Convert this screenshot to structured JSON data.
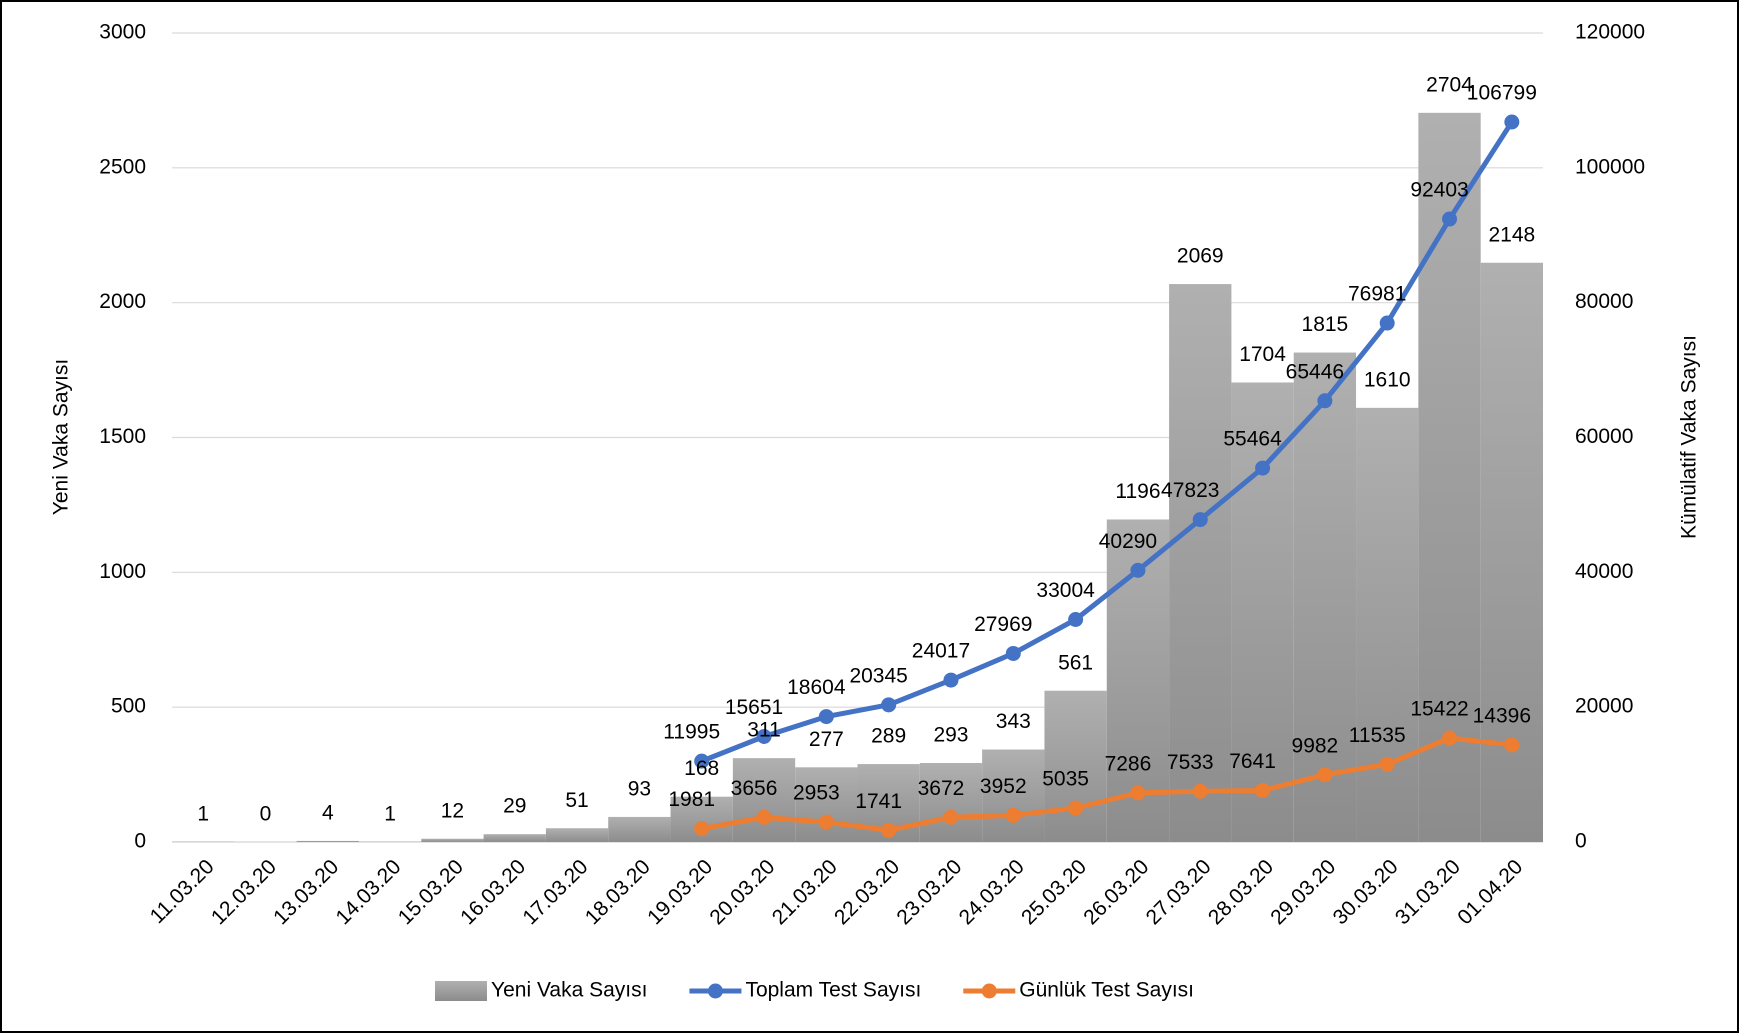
{
  "chart_data": {
    "type": "bar",
    "categories": [
      "11.03.20",
      "12.03.20",
      "13.03.20",
      "14.03.20",
      "15.03.20",
      "16.03.20",
      "17.03.20",
      "18.03.20",
      "19.03.20",
      "20.03.20",
      "21.03.20",
      "22.03.20",
      "23.03.20",
      "24.03.20",
      "25.03.20",
      "26.03.20",
      "27.03.20",
      "28.03.20",
      "29.03.20",
      "30.03.20",
      "31.03.20",
      "01.04.20"
    ],
    "series": [
      {
        "name": "Yeni Vaka Sayısı",
        "type": "bar",
        "color": "#a6a6a6",
        "label_color": "#ff0000",
        "values": [
          1,
          0,
          4,
          1,
          12,
          29,
          51,
          93,
          168,
          311,
          277,
          289,
          293,
          343,
          561,
          1196,
          2069,
          1704,
          1815,
          1610,
          2704,
          2148
        ]
      },
      {
        "name": "Toplam Test Sayısı",
        "type": "line",
        "axis": "y2",
        "color": "#4472c4",
        "label_color": "#000000",
        "values": [
          null,
          null,
          null,
          null,
          null,
          null,
          null,
          null,
          11995,
          15651,
          18604,
          20345,
          24017,
          27969,
          33004,
          40290,
          47823,
          55464,
          65446,
          76981,
          92403,
          106799
        ]
      },
      {
        "name": "Günlük Test Sayısı",
        "type": "line",
        "axis": "y2",
        "color": "#ed7d31",
        "label_color": "#000000",
        "values": [
          null,
          null,
          null,
          null,
          null,
          null,
          null,
          null,
          1981,
          3656,
          2953,
          1741,
          3672,
          3952,
          5035,
          7286,
          7533,
          7641,
          9982,
          11535,
          15422,
          14396
        ]
      }
    ],
    "ylabel": "Yeni Vaka Sayısı",
    "y2label": "Kümülatif Vaka Sayısı",
    "ylim": [
      0,
      3000
    ],
    "yticks": [
      0,
      500,
      1000,
      1500,
      2000,
      2500,
      3000
    ],
    "y2lim": [
      0,
      120000
    ],
    "y2ticks": [
      0,
      20000,
      40000,
      60000,
      80000,
      100000,
      120000
    ],
    "grid": true,
    "legend": "bottom"
  }
}
